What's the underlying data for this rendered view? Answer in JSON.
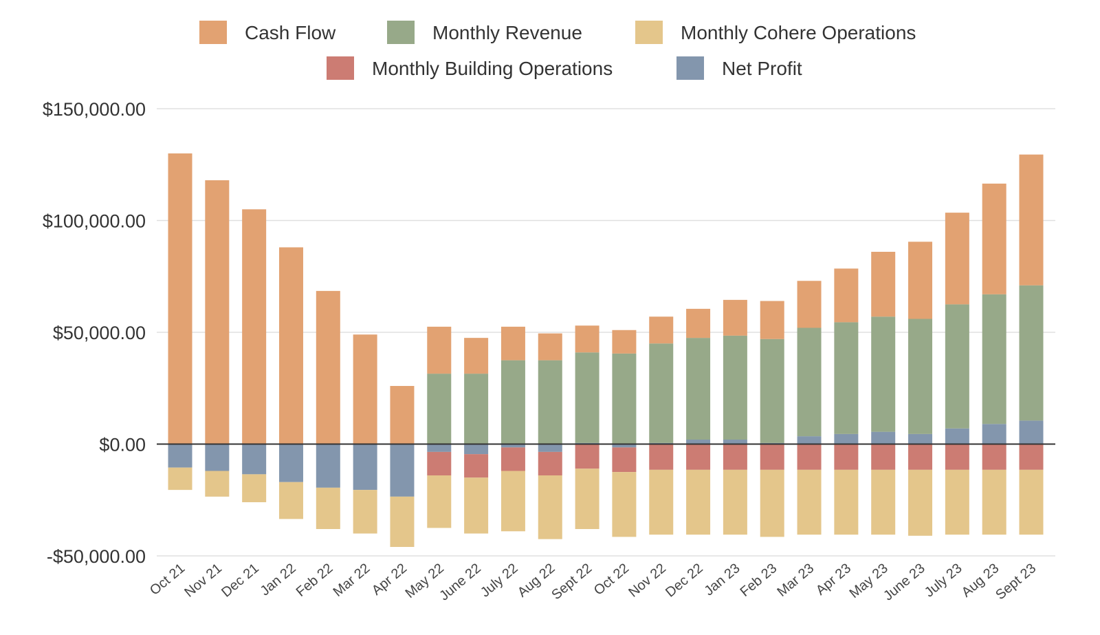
{
  "chart_data": {
    "type": "bar",
    "stacked": true,
    "title": "",
    "xlabel": "",
    "ylabel": "",
    "ylim": [
      -50000,
      150000
    ],
    "yticks": [
      -50000,
      0,
      50000,
      100000,
      150000
    ],
    "ytick_labels": [
      "-$50,000.00",
      "$0.00",
      "$50,000.00",
      "$100,000.00",
      "$150,000.00"
    ],
    "grid": true,
    "legend_position": "top-center",
    "categories": [
      "Oct 21",
      "Nov 21",
      "Dec 21",
      "Jan 22",
      "Feb 22",
      "Mar 22",
      "Apr 22",
      "May 22",
      "June 22",
      "July 22",
      "Aug 22",
      "Sept 22",
      "Oct 22",
      "Nov 22",
      "Dec 22",
      "Jan 23",
      "Feb 23",
      "Mar 23",
      "Apr 23",
      "May 23",
      "June 23",
      "July 23",
      "Aug 23",
      "Sept 23"
    ],
    "series": [
      {
        "name": "Cash Flow",
        "color": "#e2a272",
        "values": [
          130000,
          118000,
          105000,
          88000,
          68500,
          49000,
          26000,
          21000,
          16000,
          15000,
          12000,
          12000,
          10500,
          12000,
          13000,
          16000,
          17000,
          21000,
          24000,
          29000,
          34500,
          41000,
          49500,
          58500
        ]
      },
      {
        "name": "Monthly Revenue",
        "color": "#97a989",
        "values": [
          0,
          0,
          0,
          0,
          0,
          0,
          0,
          31500,
          31500,
          37500,
          37500,
          40500,
          40500,
          44500,
          45500,
          46500,
          46500,
          48500,
          50000,
          51500,
          51500,
          55500,
          58000,
          60500
        ]
      },
      {
        "name": "Monthly Cohere Operations",
        "color": "#e4c68b",
        "values": [
          -10000,
          -11500,
          -12500,
          -16500,
          -18500,
          -19500,
          -22500,
          -23500,
          -25000,
          -27000,
          -28500,
          -27000,
          -29000,
          -29000,
          -29000,
          -29000,
          -30000,
          -29000,
          -29000,
          -29000,
          -29500,
          -29000,
          -29000,
          -29000
        ]
      },
      {
        "name": "Monthly Building Operations",
        "color": "#cc7c73",
        "values": [
          0,
          0,
          0,
          0,
          0,
          0,
          0,
          -10500,
          -10500,
          -10500,
          -10500,
          -11000,
          -11000,
          -11500,
          -11500,
          -11500,
          -11500,
          -11500,
          -11500,
          -11500,
          -11500,
          -11500,
          -11500,
          -11500
        ]
      },
      {
        "name": "Net Profit",
        "color": "#8396ad",
        "values": [
          -10500,
          -12000,
          -13500,
          -17000,
          -19500,
          -20500,
          -23500,
          -3500,
          -4500,
          -1500,
          -3500,
          500,
          -1500,
          500,
          2000,
          2000,
          500,
          3500,
          4500,
          5500,
          4500,
          7000,
          9000,
          10500
        ]
      }
    ]
  }
}
